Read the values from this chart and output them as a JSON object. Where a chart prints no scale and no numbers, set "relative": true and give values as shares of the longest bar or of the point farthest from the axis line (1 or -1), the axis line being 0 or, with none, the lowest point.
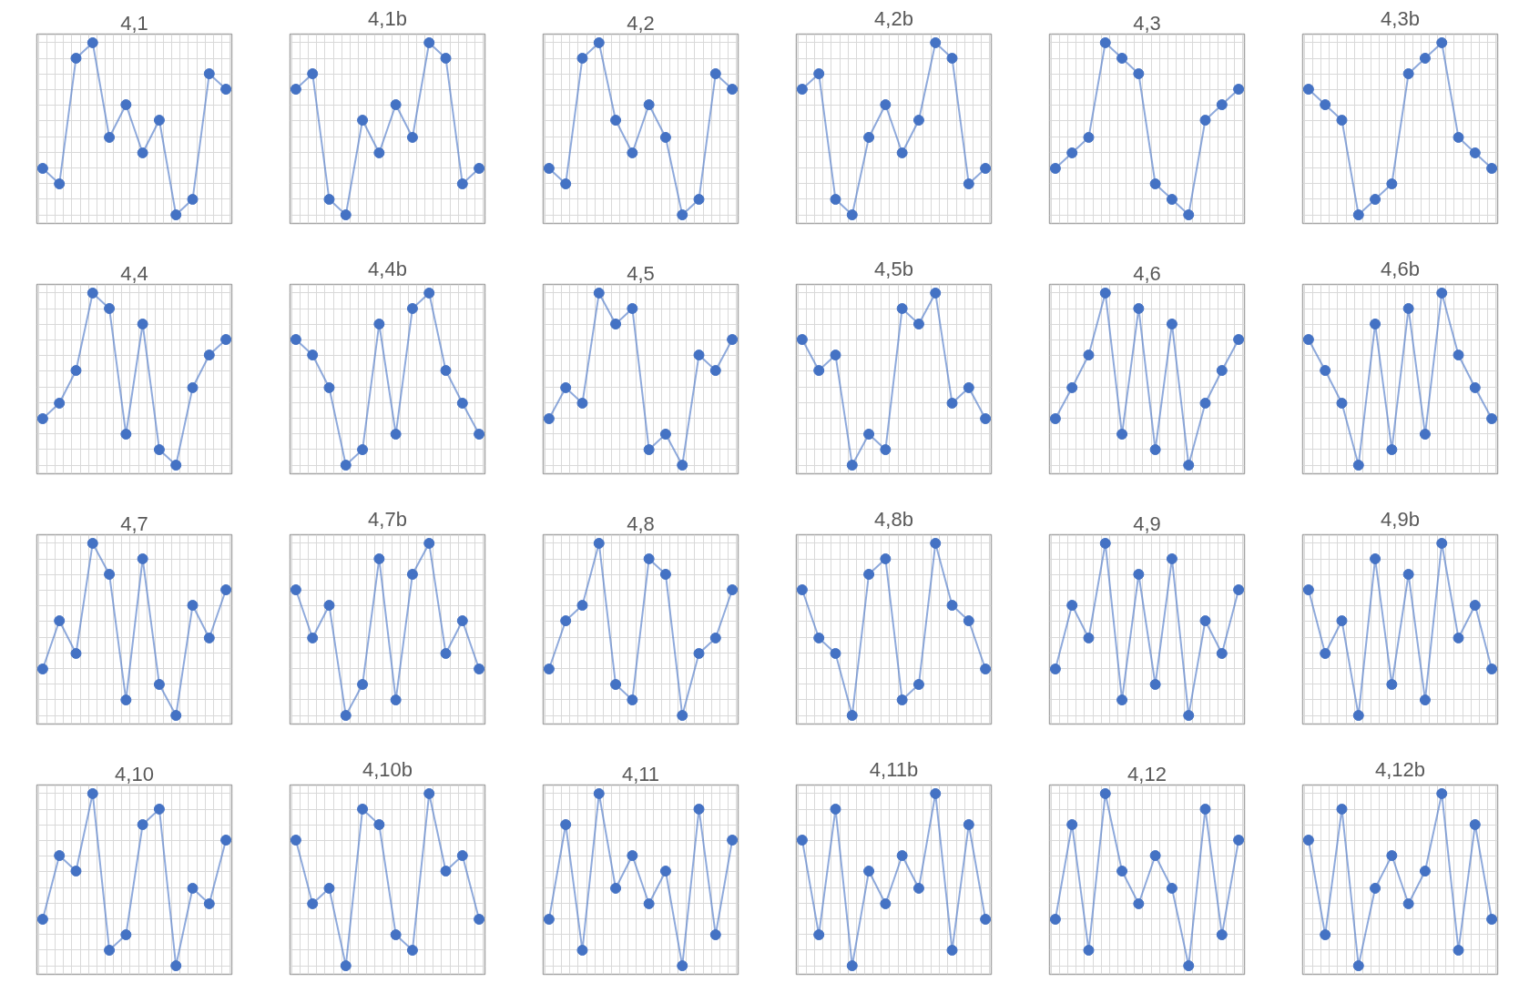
{
  "chart_data": [
    {
      "type": "line",
      "title": "4,1",
      "relative": true,
      "grid": true,
      "marker": "circle",
      "categories": [
        null,
        null,
        null,
        null,
        null,
        null,
        null,
        null,
        null,
        null,
        null,
        null
      ],
      "series": [
        {
          "color": "#4472c4",
          "values": [
            0.27,
            0.18,
            0.91,
            1,
            0.45,
            0.64,
            0.36,
            0.55,
            0,
            0.09,
            0.82,
            0.73
          ]
        }
      ]
    },
    {
      "type": "line",
      "title": "4,1b",
      "relative": true,
      "grid": true,
      "marker": "circle",
      "categories": [
        null,
        null,
        null,
        null,
        null,
        null,
        null,
        null,
        null,
        null,
        null,
        null
      ],
      "series": [
        {
          "color": "#4472c4",
          "values": [
            0.73,
            0.82,
            0.09,
            0,
            0.55,
            0.36,
            0.64,
            0.45,
            1,
            0.91,
            0.18,
            0.27
          ]
        }
      ]
    },
    {
      "type": "line",
      "title": "4,2",
      "relative": true,
      "grid": true,
      "marker": "circle",
      "categories": [
        null,
        null,
        null,
        null,
        null,
        null,
        null,
        null,
        null,
        null,
        null,
        null
      ],
      "series": [
        {
          "color": "#4472c4",
          "values": [
            0.27,
            0.18,
            0.91,
            1,
            0.55,
            0.36,
            0.64,
            0.45,
            0,
            0.09,
            0.82,
            0.73
          ]
        }
      ]
    },
    {
      "type": "line",
      "title": "4,2b",
      "relative": true,
      "grid": true,
      "marker": "circle",
      "categories": [
        null,
        null,
        null,
        null,
        null,
        null,
        null,
        null,
        null,
        null,
        null,
        null
      ],
      "series": [
        {
          "color": "#4472c4",
          "values": [
            0.73,
            0.82,
            0.09,
            0,
            0.45,
            0.64,
            0.36,
            0.55,
            1,
            0.91,
            0.18,
            0.27
          ]
        }
      ]
    },
    {
      "type": "line",
      "title": "4,3",
      "relative": true,
      "grid": true,
      "marker": "circle",
      "categories": [
        null,
        null,
        null,
        null,
        null,
        null,
        null,
        null,
        null,
        null,
        null,
        null
      ],
      "series": [
        {
          "color": "#4472c4",
          "values": [
            0.27,
            0.36,
            0.45,
            1,
            0.91,
            0.82,
            0.18,
            0.09,
            0,
            0.55,
            0.64,
            0.73
          ]
        }
      ]
    },
    {
      "type": "line",
      "title": "4,3b",
      "relative": true,
      "grid": true,
      "marker": "circle",
      "categories": [
        null,
        null,
        null,
        null,
        null,
        null,
        null,
        null,
        null,
        null,
        null,
        null
      ],
      "series": [
        {
          "color": "#4472c4",
          "values": [
            0.73,
            0.64,
            0.55,
            0,
            0.09,
            0.18,
            0.82,
            0.91,
            1,
            0.45,
            0.36,
            0.27
          ]
        }
      ]
    },
    {
      "type": "line",
      "title": "4,4",
      "relative": true,
      "grid": true,
      "marker": "circle",
      "categories": [
        null,
        null,
        null,
        null,
        null,
        null,
        null,
        null,
        null,
        null,
        null,
        null
      ],
      "series": [
        {
          "color": "#4472c4",
          "values": [
            0.27,
            0.36,
            0.55,
            1,
            0.91,
            0.18,
            0.82,
            0.09,
            0,
            0.45,
            0.64,
            0.73
          ]
        }
      ]
    },
    {
      "type": "line",
      "title": "4,4b",
      "relative": true,
      "grid": true,
      "marker": "circle",
      "categories": [
        null,
        null,
        null,
        null,
        null,
        null,
        null,
        null,
        null,
        null,
        null,
        null
      ],
      "series": [
        {
          "color": "#4472c4",
          "values": [
            0.73,
            0.64,
            0.45,
            0,
            0.09,
            0.82,
            0.18,
            0.91,
            1,
            0.55,
            0.36,
            0.18
          ]
        }
      ]
    },
    {
      "type": "line",
      "title": "4,5",
      "relative": true,
      "grid": true,
      "marker": "circle",
      "categories": [
        null,
        null,
        null,
        null,
        null,
        null,
        null,
        null,
        null,
        null,
        null,
        null
      ],
      "series": [
        {
          "color": "#4472c4",
          "values": [
            0.27,
            0.45,
            0.36,
            1,
            0.82,
            0.91,
            0.09,
            0.18,
            0,
            0.64,
            0.55,
            0.73
          ]
        }
      ]
    },
    {
      "type": "line",
      "title": "4,5b",
      "relative": true,
      "grid": true,
      "marker": "circle",
      "categories": [
        null,
        null,
        null,
        null,
        null,
        null,
        null,
        null,
        null,
        null,
        null,
        null
      ],
      "series": [
        {
          "color": "#4472c4",
          "values": [
            0.73,
            0.55,
            0.64,
            0,
            0.18,
            0.09,
            0.91,
            0.82,
            1,
            0.36,
            0.45,
            0.27
          ]
        }
      ]
    },
    {
      "type": "line",
      "title": "4,6",
      "relative": true,
      "grid": true,
      "marker": "circle",
      "categories": [
        null,
        null,
        null,
        null,
        null,
        null,
        null,
        null,
        null,
        null,
        null,
        null
      ],
      "series": [
        {
          "color": "#4472c4",
          "values": [
            0.27,
            0.45,
            0.64,
            1,
            0.18,
            0.91,
            0.09,
            0.82,
            0,
            0.36,
            0.55,
            0.73
          ]
        }
      ]
    },
    {
      "type": "line",
      "title": "4,6b",
      "relative": true,
      "grid": true,
      "marker": "circle",
      "categories": [
        null,
        null,
        null,
        null,
        null,
        null,
        null,
        null,
        null,
        null,
        null,
        null
      ],
      "series": [
        {
          "color": "#4472c4",
          "values": [
            0.73,
            0.55,
            0.36,
            0,
            0.82,
            0.09,
            0.91,
            0.18,
            1,
            0.64,
            0.45,
            0.27
          ]
        }
      ]
    },
    {
      "type": "line",
      "title": "4,7",
      "relative": true,
      "grid": true,
      "marker": "circle",
      "categories": [
        null,
        null,
        null,
        null,
        null,
        null,
        null,
        null,
        null,
        null,
        null,
        null
      ],
      "series": [
        {
          "color": "#4472c4",
          "values": [
            0.27,
            0.55,
            0.36,
            1,
            0.82,
            0.09,
            0.91,
            0.18,
            0,
            0.64,
            0.45,
            0.73
          ]
        }
      ]
    },
    {
      "type": "line",
      "title": "4,7b",
      "relative": true,
      "grid": true,
      "marker": "circle",
      "categories": [
        null,
        null,
        null,
        null,
        null,
        null,
        null,
        null,
        null,
        null,
        null,
        null
      ],
      "series": [
        {
          "color": "#4472c4",
          "values": [
            0.73,
            0.45,
            0.64,
            0,
            0.18,
            0.91,
            0.09,
            0.82,
            1,
            0.36,
            0.55,
            0.27
          ]
        }
      ]
    },
    {
      "type": "line",
      "title": "4,8",
      "relative": true,
      "grid": true,
      "marker": "circle",
      "categories": [
        null,
        null,
        null,
        null,
        null,
        null,
        null,
        null,
        null,
        null,
        null,
        null
      ],
      "series": [
        {
          "color": "#4472c4",
          "values": [
            0.27,
            0.55,
            0.64,
            1,
            0.18,
            0.09,
            0.91,
            0.82,
            0,
            0.36,
            0.45,
            0.73
          ]
        }
      ]
    },
    {
      "type": "line",
      "title": "4,8b",
      "relative": true,
      "grid": true,
      "marker": "circle",
      "categories": [
        null,
        null,
        null,
        null,
        null,
        null,
        null,
        null,
        null,
        null,
        null,
        null
      ],
      "series": [
        {
          "color": "#4472c4",
          "values": [
            0.73,
            0.45,
            0.36,
            0,
            0.82,
            0.91,
            0.09,
            0.18,
            1,
            0.64,
            0.55,
            0.27
          ]
        }
      ]
    },
    {
      "type": "line",
      "title": "4,9",
      "relative": true,
      "grid": true,
      "marker": "circle",
      "categories": [
        null,
        null,
        null,
        null,
        null,
        null,
        null,
        null,
        null,
        null,
        null,
        null
      ],
      "series": [
        {
          "color": "#4472c4",
          "values": [
            0.27,
            0.64,
            0.45,
            1,
            0.09,
            0.82,
            0.18,
            0.91,
            0,
            0.55,
            0.36,
            0.73
          ]
        }
      ]
    },
    {
      "type": "line",
      "title": "4,9b",
      "relative": true,
      "grid": true,
      "marker": "circle",
      "categories": [
        null,
        null,
        null,
        null,
        null,
        null,
        null,
        null,
        null,
        null,
        null,
        null
      ],
      "series": [
        {
          "color": "#4472c4",
          "values": [
            0.73,
            0.36,
            0.55,
            0,
            0.91,
            0.18,
            0.82,
            0.09,
            1,
            0.45,
            0.64,
            0.27
          ]
        }
      ]
    },
    {
      "type": "line",
      "title": "4,10",
      "relative": true,
      "grid": true,
      "marker": "circle",
      "categories": [
        null,
        null,
        null,
        null,
        null,
        null,
        null,
        null,
        null,
        null,
        null,
        null
      ],
      "series": [
        {
          "color": "#4472c4",
          "values": [
            0.27,
            0.64,
            0.55,
            1,
            0.09,
            0.18,
            0.82,
            0.91,
            0,
            0.45,
            0.36,
            0.73
          ]
        }
      ]
    },
    {
      "type": "line",
      "title": "4,10b",
      "relative": true,
      "grid": true,
      "marker": "circle",
      "categories": [
        null,
        null,
        null,
        null,
        null,
        null,
        null,
        null,
        null,
        null,
        null,
        null
      ],
      "series": [
        {
          "color": "#4472c4",
          "values": [
            0.73,
            0.36,
            0.45,
            0,
            0.91,
            0.82,
            0.18,
            0.09,
            1,
            0.55,
            0.64,
            0.27
          ]
        }
      ]
    },
    {
      "type": "line",
      "title": "4,11",
      "relative": true,
      "grid": true,
      "marker": "circle",
      "categories": [
        null,
        null,
        null,
        null,
        null,
        null,
        null,
        null,
        null,
        null,
        null,
        null
      ],
      "series": [
        {
          "color": "#4472c4",
          "values": [
            0.27,
            0.82,
            0.09,
            1,
            0.45,
            0.64,
            0.36,
            0.55,
            0,
            0.91,
            0.18,
            0.73
          ]
        }
      ]
    },
    {
      "type": "line",
      "title": "4,11b",
      "relative": true,
      "grid": true,
      "marker": "circle",
      "categories": [
        null,
        null,
        null,
        null,
        null,
        null,
        null,
        null,
        null,
        null,
        null,
        null
      ],
      "series": [
        {
          "color": "#4472c4",
          "values": [
            0.73,
            0.18,
            0.91,
            0,
            0.55,
            0.36,
            0.64,
            0.45,
            1,
            0.09,
            0.82,
            0.27
          ]
        }
      ]
    },
    {
      "type": "line",
      "title": "4,12",
      "relative": true,
      "grid": true,
      "marker": "circle",
      "categories": [
        null,
        null,
        null,
        null,
        null,
        null,
        null,
        null,
        null,
        null,
        null,
        null
      ],
      "series": [
        {
          "color": "#4472c4",
          "values": [
            0.27,
            0.82,
            0.09,
            1,
            0.55,
            0.36,
            0.64,
            0.45,
            0,
            0.91,
            0.18,
            0.73
          ]
        }
      ]
    },
    {
      "type": "line",
      "title": "4,12b",
      "relative": true,
      "grid": true,
      "marker": "circle",
      "categories": [
        null,
        null,
        null,
        null,
        null,
        null,
        null,
        null,
        null,
        null,
        null,
        null
      ],
      "series": [
        {
          "color": "#4472c4",
          "values": [
            0.73,
            0.18,
            0.91,
            0,
            0.45,
            0.64,
            0.36,
            0.55,
            1,
            0.09,
            0.82,
            0.27
          ]
        }
      ]
    }
  ]
}
